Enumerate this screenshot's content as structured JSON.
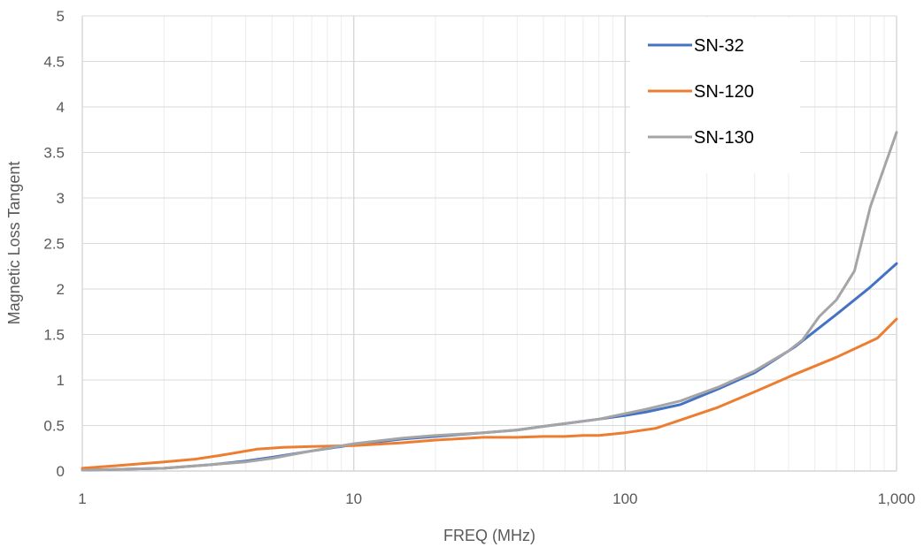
{
  "chart_data": {
    "type": "line",
    "title": "",
    "xlabel": "FREQ (MHz)",
    "ylabel": "Magnetic Loss Tangent",
    "x_scale": "log",
    "xlim": [
      1,
      1000
    ],
    "ylim": [
      0,
      5
    ],
    "x_ticks": [
      1,
      10,
      100,
      1000
    ],
    "x_tick_labels": [
      "1",
      "10",
      "100",
      "1,000"
    ],
    "y_ticks": [
      0,
      0.5,
      1,
      1.5,
      2,
      2.5,
      3,
      3.5,
      4,
      4.5,
      5
    ],
    "y_tick_labels": [
      "0",
      "0.5",
      "1",
      "1.5",
      "2",
      "2.5",
      "3",
      "3.5",
      "4",
      "4.5",
      "5"
    ],
    "grid": true,
    "legend_position": "top-right",
    "series": [
      {
        "name": "SN-32",
        "color": "#4472C4",
        "x": [
          1,
          2,
          3,
          4,
          5,
          7,
          10,
          15,
          20,
          30,
          40,
          50,
          60,
          80,
          100,
          120,
          160,
          220,
          300,
          420,
          600,
          800,
          1000
        ],
        "y": [
          0.01,
          0.03,
          0.07,
          0.11,
          0.15,
          0.22,
          0.29,
          0.35,
          0.38,
          0.42,
          0.45,
          0.49,
          0.52,
          0.57,
          0.61,
          0.65,
          0.73,
          0.9,
          1.08,
          1.36,
          1.72,
          2.02,
          2.28
        ]
      },
      {
        "name": "SN-120",
        "color": "#ED7D31",
        "x": [
          1,
          1.5,
          2,
          2.6,
          3.2,
          4.4,
          5.5,
          7,
          10,
          15,
          20,
          30,
          40,
          50,
          60,
          70,
          80,
          100,
          130,
          160,
          220,
          300,
          420,
          600,
          850,
          1000
        ],
        "y": [
          0.03,
          0.07,
          0.1,
          0.13,
          0.17,
          0.24,
          0.26,
          0.27,
          0.28,
          0.31,
          0.34,
          0.37,
          0.37,
          0.38,
          0.38,
          0.39,
          0.39,
          0.42,
          0.47,
          0.56,
          0.7,
          0.87,
          1.06,
          1.25,
          1.46,
          1.67
        ]
      },
      {
        "name": "SN-130",
        "color": "#A5A5A5",
        "x": [
          1,
          2,
          3,
          4,
          5,
          7,
          10,
          15,
          20,
          30,
          40,
          50,
          60,
          80,
          100,
          120,
          160,
          220,
          300,
          400,
          450,
          520,
          600,
          700,
          800,
          1000
        ],
        "y": [
          0.01,
          0.03,
          0.07,
          0.1,
          0.14,
          0.22,
          0.3,
          0.36,
          0.39,
          0.42,
          0.45,
          0.49,
          0.52,
          0.57,
          0.63,
          0.68,
          0.77,
          0.92,
          1.1,
          1.32,
          1.44,
          1.7,
          1.88,
          2.2,
          2.9,
          3.72
        ]
      }
    ]
  }
}
